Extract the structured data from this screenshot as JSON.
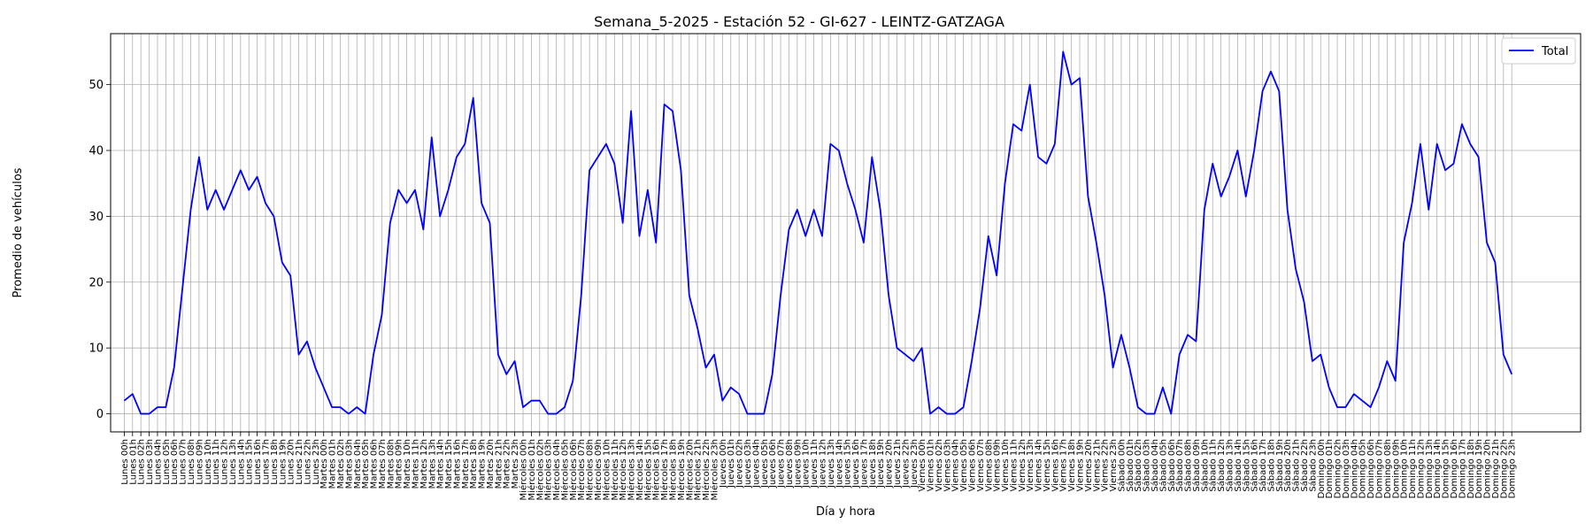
{
  "chart_data": {
    "type": "line",
    "title": "Semana_5-2025 - Estación 52 - GI-627  - LEINTZ-GATZAGA",
    "xlabel": "Día y hora",
    "ylabel": "Promedio de vehículos",
    "ylim": [
      -2.75,
      57.75
    ],
    "yticks": [
      0,
      10,
      20,
      30,
      40,
      50
    ],
    "grid": true,
    "legend": {
      "placement": "top-right"
    },
    "days": [
      "Lunes",
      "Martes",
      "Miércoles",
      "Jueves",
      "Viernes",
      "Sábado",
      "Domingo"
    ],
    "series": [
      {
        "name": "Total",
        "color": "#0000ff",
        "values": [
          2,
          3,
          0,
          0,
          1,
          1,
          7,
          19,
          31,
          39,
          31,
          34,
          31,
          34,
          37,
          34,
          36,
          32,
          30,
          23,
          21,
          9,
          11,
          7,
          4,
          1,
          1,
          0,
          1,
          0,
          9,
          15,
          29,
          34,
          32,
          34,
          28,
          42,
          30,
          34,
          39,
          41,
          48,
          32,
          29,
          9,
          6,
          8,
          1,
          2,
          2,
          0,
          0,
          1,
          5,
          18,
          37,
          39,
          41,
          38,
          29,
          46,
          27,
          34,
          26,
          47,
          46,
          37,
          18,
          13,
          7,
          9,
          2,
          4,
          3,
          0,
          0,
          0,
          6,
          18,
          28,
          31,
          27,
          31,
          27,
          41,
          40,
          35,
          31,
          26,
          39,
          31,
          18,
          10,
          9,
          8,
          10,
          0,
          1,
          0,
          0,
          1,
          8,
          16,
          27,
          21,
          35,
          44,
          43,
          50,
          39,
          38,
          41,
          55,
          50,
          51,
          33,
          26,
          18,
          7,
          12,
          7,
          1,
          0,
          0,
          4,
          0,
          9,
          12,
          11,
          31,
          38,
          33,
          36,
          40,
          33,
          40,
          49,
          52,
          49,
          31,
          22,
          17,
          8,
          9,
          4,
          1,
          1,
          3,
          2,
          1,
          4,
          8,
          5,
          26,
          32,
          41,
          31,
          41,
          37,
          38,
          44,
          41,
          39,
          26,
          23,
          9,
          6
        ]
      }
    ]
  }
}
